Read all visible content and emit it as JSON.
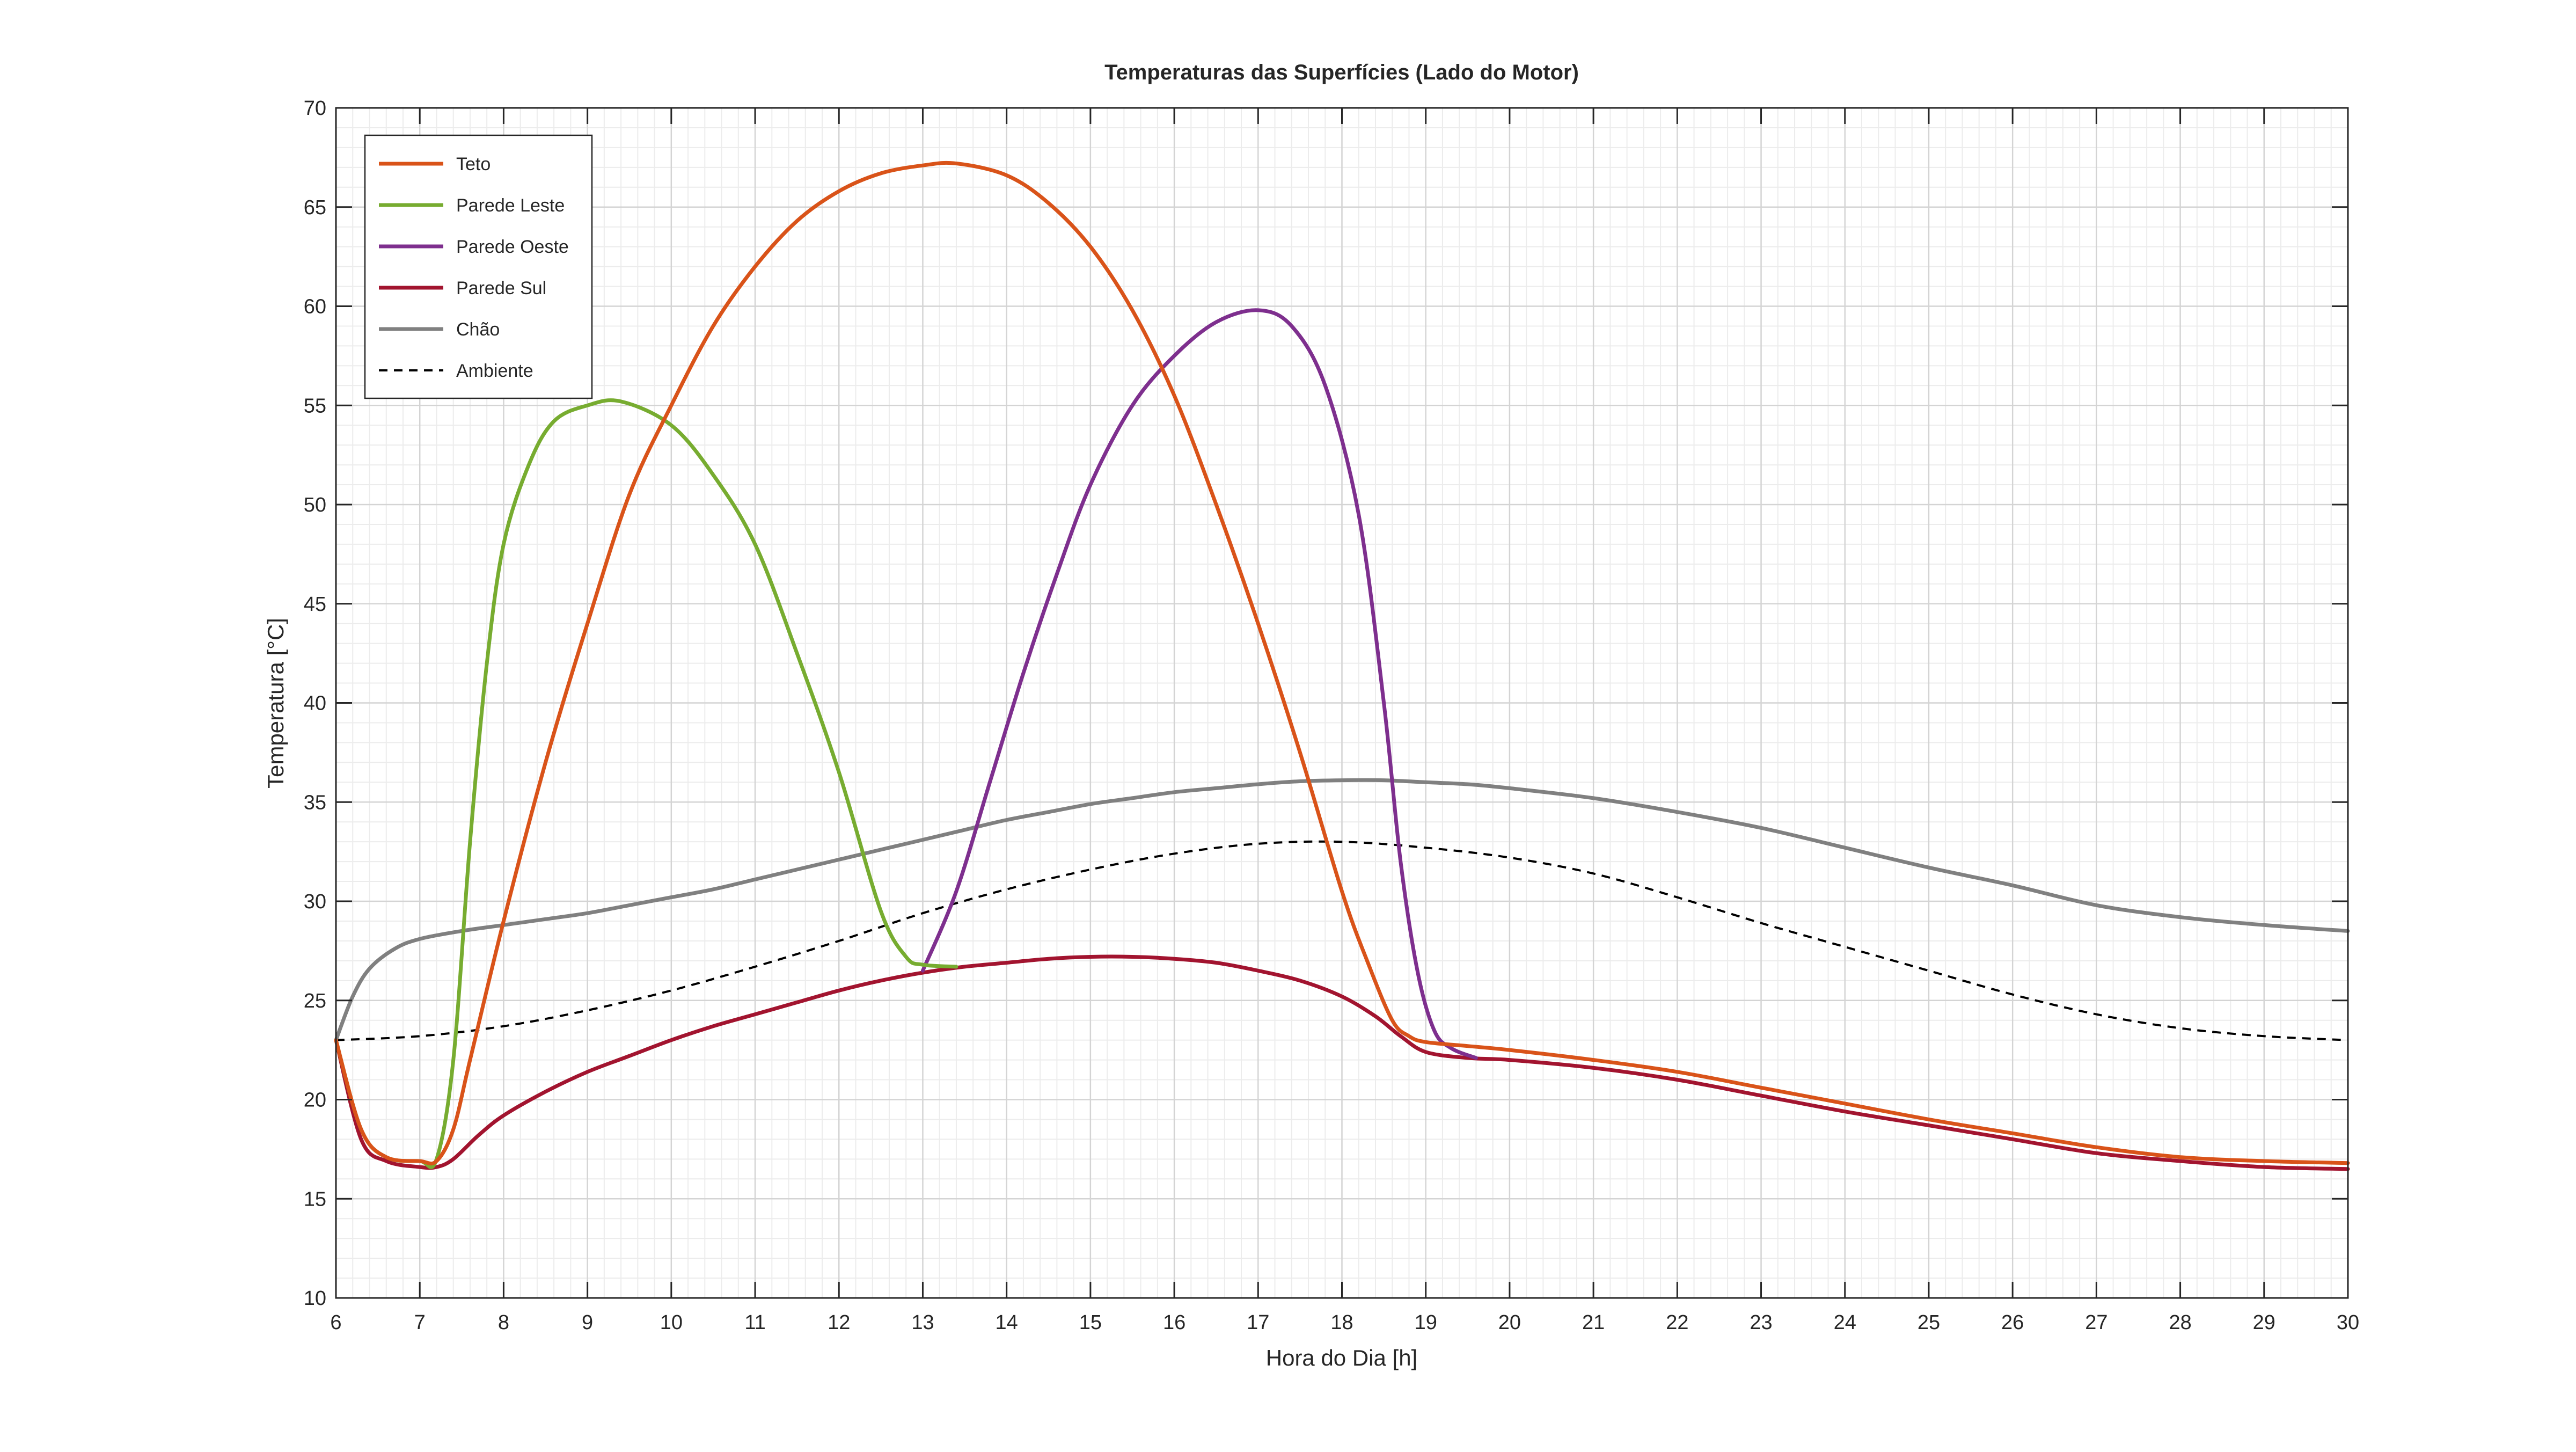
{
  "chart_data": {
    "type": "line",
    "title": "Temperaturas das Superfícies (Lado do Motor)",
    "xlabel": "Hora do Dia [h]",
    "ylabel": "Temperatura [°C]",
    "xlim": [
      6,
      30
    ],
    "ylim": [
      10,
      70
    ],
    "xticks": [
      6,
      7,
      8,
      9,
      10,
      11,
      12,
      13,
      14,
      15,
      16,
      17,
      18,
      19,
      20,
      21,
      22,
      23,
      24,
      25,
      26,
      27,
      28,
      29,
      30
    ],
    "yticks": [
      10,
      15,
      20,
      25,
      30,
      35,
      40,
      45,
      50,
      55,
      60,
      65,
      70
    ],
    "grid": true,
    "minor_grid": true,
    "legend_position": "top-left",
    "series": [
      {
        "name": "Teto",
        "color": "#D95319",
        "style": "solid",
        "points": [
          [
            6,
            23
          ],
          [
            6.3,
            18.5
          ],
          [
            6.6,
            17.1
          ],
          [
            7,
            16.9
          ],
          [
            7.2,
            16.9
          ],
          [
            7.4,
            18.5
          ],
          [
            7.6,
            22
          ],
          [
            8,
            29
          ],
          [
            8.5,
            37
          ],
          [
            9,
            44
          ],
          [
            9.5,
            50.5
          ],
          [
            10,
            55
          ],
          [
            10.5,
            59
          ],
          [
            11,
            62
          ],
          [
            11.5,
            64.3
          ],
          [
            12,
            65.8
          ],
          [
            12.5,
            66.7
          ],
          [
            13,
            67.1
          ],
          [
            13.4,
            67.2
          ],
          [
            14,
            66.6
          ],
          [
            14.5,
            65.2
          ],
          [
            15,
            63
          ],
          [
            15.5,
            59.8
          ],
          [
            16,
            55.5
          ],
          [
            16.5,
            50
          ],
          [
            17,
            44
          ],
          [
            17.5,
            37.5
          ],
          [
            18,
            30.5
          ],
          [
            18.3,
            27
          ],
          [
            18.6,
            24
          ],
          [
            18.8,
            23.2
          ],
          [
            19,
            22.9
          ],
          [
            19.5,
            22.7
          ],
          [
            20,
            22.5
          ],
          [
            21,
            22
          ],
          [
            22,
            21.4
          ],
          [
            23,
            20.6
          ],
          [
            24,
            19.8
          ],
          [
            25,
            19
          ],
          [
            26,
            18.3
          ],
          [
            27,
            17.6
          ],
          [
            28,
            17.1
          ],
          [
            29,
            16.9
          ],
          [
            30,
            16.8
          ]
        ]
      },
      {
        "name": "Parede Leste",
        "color": "#77AC30",
        "style": "solid",
        "points": [
          [
            6,
            23
          ],
          [
            6.3,
            18.5
          ],
          [
            6.6,
            17.1
          ],
          [
            7,
            16.9
          ],
          [
            7.2,
            17
          ],
          [
            7.4,
            22
          ],
          [
            7.6,
            33
          ],
          [
            7.8,
            42
          ],
          [
            8,
            48
          ],
          [
            8.3,
            52
          ],
          [
            8.6,
            54.2
          ],
          [
            9,
            55
          ],
          [
            9.4,
            55.2
          ],
          [
            10,
            54
          ],
          [
            10.5,
            51.5
          ],
          [
            11,
            48
          ],
          [
            11.5,
            42.5
          ],
          [
            12,
            36.5
          ],
          [
            12.5,
            29.5
          ],
          [
            12.8,
            27.2
          ],
          [
            13,
            26.8
          ],
          [
            13.4,
            26.7
          ]
        ]
      },
      {
        "name": "Parede Oeste",
        "color": "#7E2F8E",
        "style": "solid",
        "points": [
          [
            13,
            26.5
          ],
          [
            13.4,
            30.5
          ],
          [
            13.8,
            36
          ],
          [
            14.2,
            41.5
          ],
          [
            14.6,
            46.5
          ],
          [
            15,
            51
          ],
          [
            15.5,
            55
          ],
          [
            16,
            57.5
          ],
          [
            16.5,
            59.2
          ],
          [
            17,
            59.8
          ],
          [
            17.4,
            59
          ],
          [
            17.8,
            56
          ],
          [
            18.2,
            49.5
          ],
          [
            18.5,
            40
          ],
          [
            18.7,
            32
          ],
          [
            18.9,
            26.5
          ],
          [
            19.1,
            23.5
          ],
          [
            19.3,
            22.6
          ],
          [
            19.6,
            22.1
          ]
        ]
      },
      {
        "name": "Parede Sul",
        "color": "#A2142F",
        "style": "solid",
        "points": [
          [
            6,
            23
          ],
          [
            6.3,
            18
          ],
          [
            6.6,
            16.9
          ],
          [
            7,
            16.6
          ],
          [
            7.2,
            16.6
          ],
          [
            7.4,
            17
          ],
          [
            7.7,
            18.2
          ],
          [
            8,
            19.2
          ],
          [
            8.5,
            20.4
          ],
          [
            9,
            21.4
          ],
          [
            9.5,
            22.2
          ],
          [
            10,
            23
          ],
          [
            10.5,
            23.7
          ],
          [
            11,
            24.3
          ],
          [
            11.5,
            24.9
          ],
          [
            12,
            25.5
          ],
          [
            12.5,
            26
          ],
          [
            13,
            26.4
          ],
          [
            13.5,
            26.7
          ],
          [
            14,
            26.9
          ],
          [
            14.5,
            27.1
          ],
          [
            15,
            27.2
          ],
          [
            15.5,
            27.2
          ],
          [
            16,
            27.1
          ],
          [
            16.5,
            26.9
          ],
          [
            17,
            26.5
          ],
          [
            17.5,
            26
          ],
          [
            18,
            25.2
          ],
          [
            18.4,
            24.2
          ],
          [
            18.7,
            23.2
          ],
          [
            19,
            22.4
          ],
          [
            19.5,
            22.1
          ],
          [
            20,
            22
          ],
          [
            21,
            21.6
          ],
          [
            22,
            21
          ],
          [
            23,
            20.2
          ],
          [
            24,
            19.4
          ],
          [
            25,
            18.7
          ],
          [
            26,
            18
          ],
          [
            27,
            17.3
          ],
          [
            28,
            16.9
          ],
          [
            29,
            16.6
          ],
          [
            30,
            16.5
          ]
        ]
      },
      {
        "name": "Chão",
        "color": "#808080",
        "style": "solid",
        "points": [
          [
            6,
            23
          ],
          [
            6.2,
            25.2
          ],
          [
            6.4,
            26.6
          ],
          [
            6.7,
            27.6
          ],
          [
            7,
            28.1
          ],
          [
            7.5,
            28.5
          ],
          [
            8,
            28.8
          ],
          [
            8.5,
            29.1
          ],
          [
            9,
            29.4
          ],
          [
            9.5,
            29.8
          ],
          [
            10,
            30.2
          ],
          [
            10.5,
            30.6
          ],
          [
            11,
            31.1
          ],
          [
            11.5,
            31.6
          ],
          [
            12,
            32.1
          ],
          [
            12.5,
            32.6
          ],
          [
            13,
            33.1
          ],
          [
            13.5,
            33.6
          ],
          [
            14,
            34.1
          ],
          [
            14.5,
            34.5
          ],
          [
            15,
            34.9
          ],
          [
            15.5,
            35.2
          ],
          [
            16,
            35.5
          ],
          [
            16.5,
            35.7
          ],
          [
            17,
            35.9
          ],
          [
            17.5,
            36.05
          ],
          [
            18,
            36.1
          ],
          [
            18.5,
            36.1
          ],
          [
            19,
            36
          ],
          [
            19.5,
            35.9
          ],
          [
            20,
            35.7
          ],
          [
            21,
            35.2
          ],
          [
            22,
            34.5
          ],
          [
            23,
            33.7
          ],
          [
            24,
            32.7
          ],
          [
            25,
            31.7
          ],
          [
            26,
            30.8
          ],
          [
            27,
            29.8
          ],
          [
            28,
            29.2
          ],
          [
            29,
            28.8
          ],
          [
            30,
            28.5
          ]
        ]
      },
      {
        "name": "Ambiente",
        "color": "#000000",
        "style": "dashed",
        "points": [
          [
            6,
            23
          ],
          [
            7,
            23.2
          ],
          [
            8,
            23.7
          ],
          [
            9,
            24.5
          ],
          [
            10,
            25.5
          ],
          [
            11,
            26.7
          ],
          [
            12,
            28
          ],
          [
            13,
            29.4
          ],
          [
            14,
            30.6
          ],
          [
            15,
            31.6
          ],
          [
            16,
            32.4
          ],
          [
            17,
            32.9
          ],
          [
            18,
            33
          ],
          [
            19,
            32.7
          ],
          [
            20,
            32.2
          ],
          [
            21,
            31.4
          ],
          [
            22,
            30.2
          ],
          [
            23,
            28.9
          ],
          [
            24,
            27.7
          ],
          [
            25,
            26.5
          ],
          [
            26,
            25.3
          ],
          [
            27,
            24.3
          ],
          [
            28,
            23.6
          ],
          [
            29,
            23.2
          ],
          [
            30,
            23
          ]
        ]
      }
    ]
  }
}
